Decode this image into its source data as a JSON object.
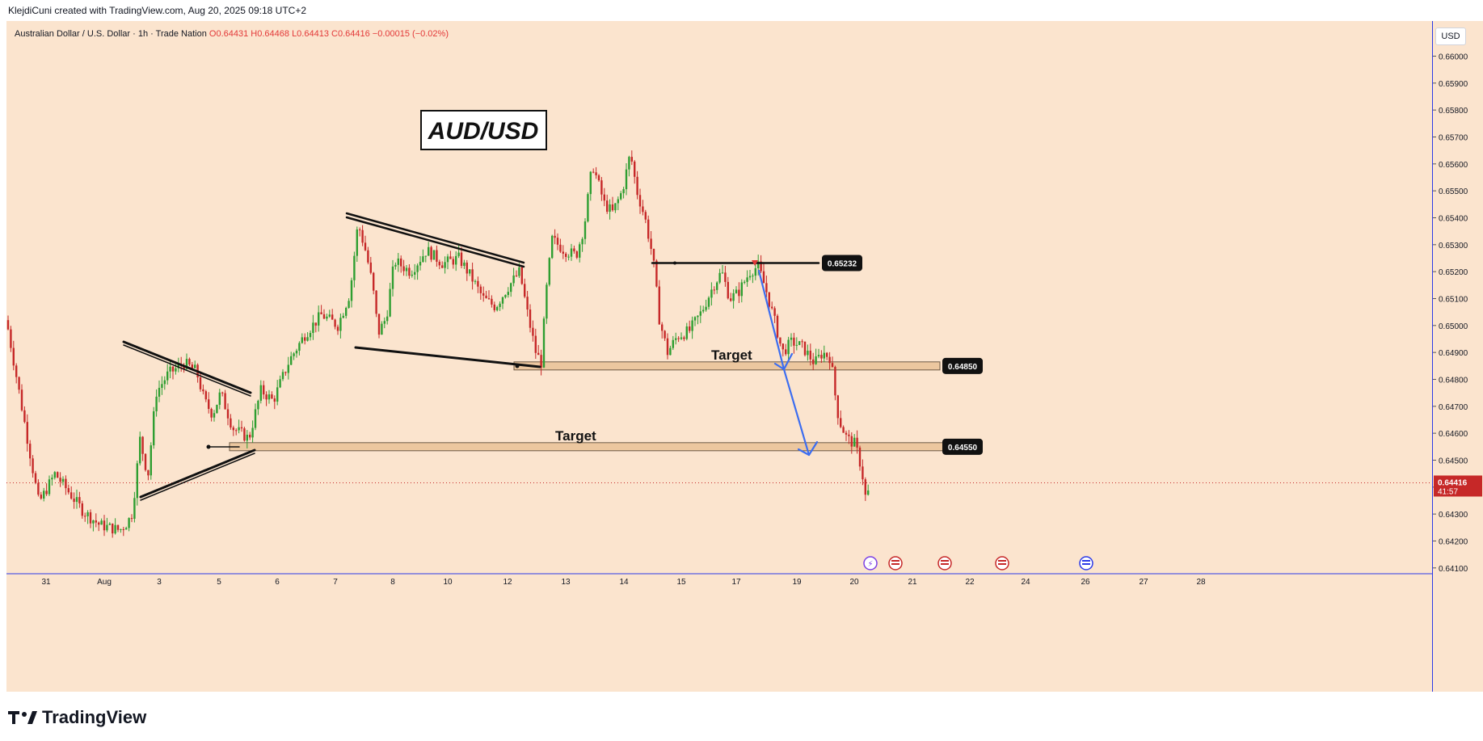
{
  "caption": "KlejdiCuni created with TradingView.com, Aug 20, 2025 09:18 UTC+2",
  "symbol": {
    "name": "Australian Dollar / U.S. Dollar · 1h · Trade Nation",
    "open": "O0.64431",
    "high": "H0.64468",
    "low": "L0.64413",
    "close": "C0.64416",
    "change": "−0.00015 (−0.02%)"
  },
  "currency": "USD",
  "footer": {
    "brand": "TradingView"
  },
  "colors": {
    "background": "#fbe4ce",
    "up_candle": "#2e9e31",
    "down_candle": "#c62828",
    "trendline": "#111111",
    "arrow": "#3c6df0",
    "zone_fill": "#ecc79f",
    "axis_line": "#2b3ae8",
    "last_price": "#c62828"
  },
  "chart_data": {
    "type": "candlestick",
    "title": "AUD/USD",
    "timeframe": "1h",
    "ylim": [
      0.641,
      0.661
    ],
    "y_ticks": [
      "0.66000",
      "0.65900",
      "0.65800",
      "0.65700",
      "0.65600",
      "0.65500",
      "0.65400",
      "0.65300",
      "0.65200",
      "0.65100",
      "0.65000",
      "0.64900",
      "0.64800",
      "0.64700",
      "0.64600",
      "0.64500",
      "0.64400",
      "0.64300",
      "0.64200",
      "0.64100"
    ],
    "x_ticks": [
      "31",
      "Aug",
      "3",
      "5",
      "6",
      "7",
      "8",
      "10",
      "12",
      "13",
      "14",
      "15",
      "17",
      "19",
      "20",
      "21",
      "22",
      "24",
      "26",
      "27",
      "28"
    ],
    "path_points": [
      [
        0,
        0.6502
      ],
      [
        40,
        0.6434
      ],
      [
        60,
        0.6445
      ],
      [
        95,
        0.6431
      ],
      [
        115,
        0.6426
      ],
      [
        140,
        0.6424
      ],
      [
        150,
        0.6427
      ],
      [
        155,
        0.643
      ],
      [
        160,
        0.6442
      ],
      [
        165,
        0.6458
      ],
      [
        175,
        0.6444
      ],
      [
        185,
        0.6475
      ],
      [
        200,
        0.6482
      ],
      [
        220,
        0.6486
      ],
      [
        235,
        0.6483
      ],
      [
        245,
        0.6472
      ],
      [
        255,
        0.6467
      ],
      [
        265,
        0.6475
      ],
      [
        280,
        0.6462
      ],
      [
        300,
        0.6458
      ],
      [
        315,
        0.6476
      ],
      [
        330,
        0.6472
      ],
      [
        350,
        0.6487
      ],
      [
        370,
        0.6497
      ],
      [
        390,
        0.6504
      ],
      [
        410,
        0.65
      ],
      [
        425,
        0.6512
      ],
      [
        435,
        0.6538
      ],
      [
        445,
        0.6527
      ],
      [
        453,
        0.6515
      ],
      [
        460,
        0.6497
      ],
      [
        470,
        0.6503
      ],
      [
        480,
        0.6524
      ],
      [
        500,
        0.652
      ],
      [
        520,
        0.6528
      ],
      [
        540,
        0.6523
      ],
      [
        560,
        0.6525
      ],
      [
        575,
        0.6518
      ],
      [
        590,
        0.651
      ],
      [
        605,
        0.6507
      ],
      [
        620,
        0.6514
      ],
      [
        635,
        0.652
      ],
      [
        645,
        0.6504
      ],
      [
        655,
        0.649
      ],
      [
        662,
        0.6486
      ],
      [
        667,
        0.651
      ],
      [
        675,
        0.6532
      ],
      [
        690,
        0.6528
      ],
      [
        705,
        0.6526
      ],
      [
        715,
        0.6537
      ],
      [
        725,
        0.656
      ],
      [
        740,
        0.6545
      ],
      [
        750,
        0.6542
      ],
      [
        762,
        0.655
      ],
      [
        772,
        0.6564
      ],
      [
        780,
        0.655
      ],
      [
        790,
        0.654
      ],
      [
        800,
        0.6525
      ],
      [
        808,
        0.6502
      ],
      [
        818,
        0.649
      ],
      [
        830,
        0.6496
      ],
      [
        845,
        0.6498
      ],
      [
        860,
        0.6505
      ],
      [
        875,
        0.6515
      ],
      [
        885,
        0.652
      ],
      [
        895,
        0.651
      ],
      [
        905,
        0.6512
      ],
      [
        920,
        0.652
      ],
      [
        930,
        0.6522
      ],
      [
        940,
        0.6513
      ],
      [
        952,
        0.65
      ],
      [
        960,
        0.649
      ],
      [
        972,
        0.6494
      ],
      [
        985,
        0.6492
      ],
      [
        1000,
        0.6486
      ],
      [
        1010,
        0.649
      ],
      [
        1020,
        0.6488
      ],
      [
        1025,
        0.6475
      ],
      [
        1030,
        0.6465
      ],
      [
        1040,
        0.6458
      ],
      [
        1050,
        0.6456
      ],
      [
        1058,
        0.6447
      ],
      [
        1064,
        0.6434
      ],
      [
        1070,
        0.6445
      ],
      [
        1075,
        0.6442
      ]
    ],
    "levels": [
      {
        "value": 0.65232,
        "label": "0.65232"
      },
      {
        "value": 0.6485,
        "label": "0.64850",
        "annotation": "Target"
      },
      {
        "value": 0.6455,
        "label": "0.64550",
        "annotation": "Target"
      }
    ],
    "last_price": {
      "value": "0.64416",
      "countdown": "41:57"
    }
  }
}
